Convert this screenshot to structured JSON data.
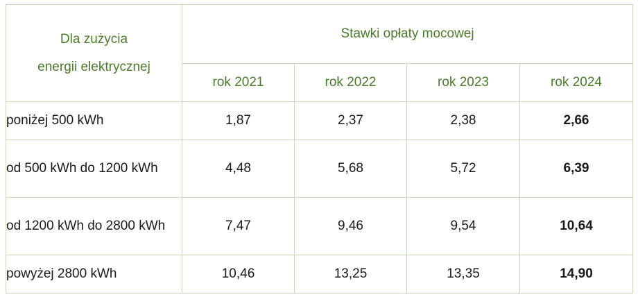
{
  "table": {
    "corner_header_line1": "Dla zużycia",
    "corner_header_line2": "energii elektrycznej",
    "group_header": "Stawki opłaty mocowej",
    "years": [
      "rok 2021",
      "rok 2022",
      "rok 2023",
      "rok 2024"
    ],
    "rows": [
      {
        "label": "poniżej 500 kWh",
        "values": [
          "1,87",
          "2,37",
          "2,38",
          "2,66"
        ]
      },
      {
        "label": "od 500 kWh do 1200 kWh",
        "values": [
          "4,48",
          "5,68",
          "5,72",
          "6,39"
        ]
      },
      {
        "label": "od 1200 kWh do 2800 kWh",
        "values": [
          "7,47",
          "9,46",
          "9,54",
          "10,64"
        ]
      },
      {
        "label": "powyżej 2800 kWh",
        "values": [
          "10,46",
          "13,25",
          "13,35",
          "14,90"
        ]
      }
    ],
    "colors": {
      "header_text": "#4c7a2c",
      "border": "#c9d9b9",
      "accent_rule": "#8fb36f"
    }
  }
}
